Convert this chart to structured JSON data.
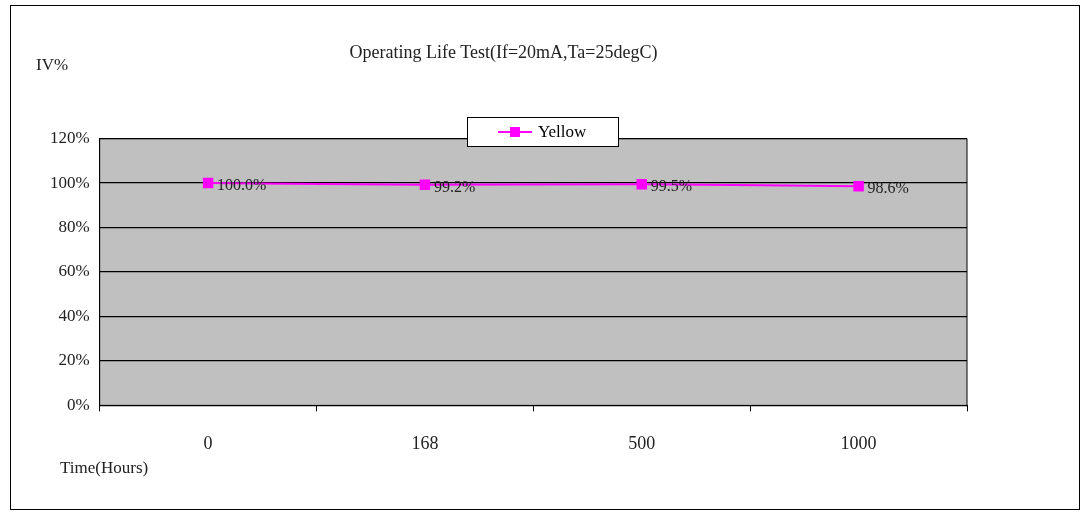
{
  "chart_data": {
    "type": "line",
    "title": "Operating Life Test(If=20mA,Ta=25degC)",
    "xlabel": "Time(Hours)",
    "ylabel": "IV%",
    "categories": [
      "0",
      "168",
      "500",
      "1000"
    ],
    "series": [
      {
        "name": "Yellow",
        "color": "#ff00ff",
        "values": [
          100.0,
          99.2,
          99.5,
          98.6
        ],
        "value_labels": [
          "100.0%",
          "99.2%",
          "99.5%",
          "98.6%"
        ]
      }
    ],
    "ylim": [
      0,
      120
    ],
    "yticks": [
      {
        "value": 0,
        "label": "0%"
      },
      {
        "value": 20,
        "label": "20%"
      },
      {
        "value": 40,
        "label": "40%"
      },
      {
        "value": 60,
        "label": "60%"
      },
      {
        "value": 80,
        "label": "80%"
      },
      {
        "value": 100,
        "label": "100%"
      },
      {
        "value": 120,
        "label": "120%"
      }
    ],
    "grid": "y",
    "legend": "top",
    "marker": "square",
    "line_style": "solid"
  }
}
